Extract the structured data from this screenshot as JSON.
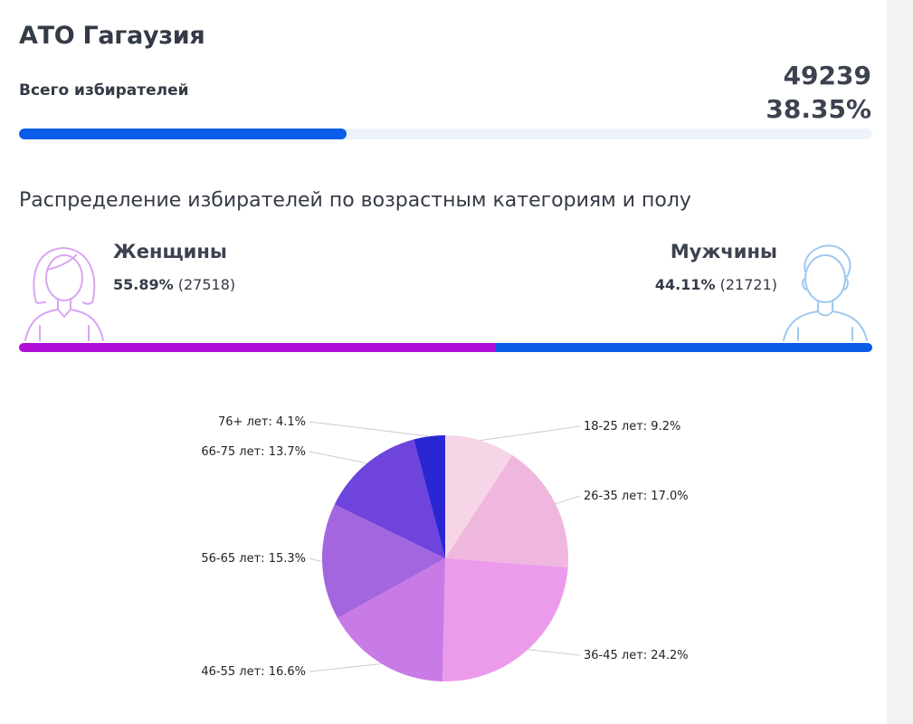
{
  "header": {
    "region_title": "АТО Гагаузия",
    "voters_label": "Всего избирателей",
    "voters_count": "49239",
    "voters_percent": "38.35%",
    "voters_progress": 0.3835
  },
  "gender": {
    "section_title": "Распределение избирателей по возрастным категориям и полу",
    "female": {
      "label": "Женщины",
      "percent": "55.89%",
      "count": "(27518)",
      "share": 0.5589
    },
    "male": {
      "label": "Мужчины",
      "percent": "44.11%",
      "count": "(21721)",
      "share": 0.4411
    }
  },
  "colors": {
    "accent_blue": "#0b5ce8",
    "female_purple": "#b10fd8",
    "female_icon": "#d9a6f0",
    "male_icon": "#9fc9f0"
  },
  "icons": {
    "female": "woman-avatar-icon",
    "male": "man-avatar-icon"
  },
  "chart_data": {
    "type": "pie",
    "categories": [
      "18-25 лет",
      "26-35 лет",
      "36-45 лет",
      "46-55 лет",
      "56-65 лет",
      "66-75 лет",
      "76+ лет"
    ],
    "values": [
      9.2,
      17.0,
      24.2,
      16.6,
      15.3,
      13.7,
      4.1
    ],
    "labels": [
      "18-25 лет: 9.2%",
      "26-35 лет: 17.0%",
      "36-45 лет: 24.2%",
      "46-55 лет: 16.6%",
      "56-65 лет: 15.3%",
      "66-75 лет: 13.7%",
      "76+ лет: 4.1%"
    ],
    "colors": [
      "#f6d5e6",
      "#efb7dd",
      "#eb9bea",
      "#c87be6",
      "#a466df",
      "#6e44dc",
      "#2a27d2"
    ],
    "title": "",
    "legend": "none"
  }
}
